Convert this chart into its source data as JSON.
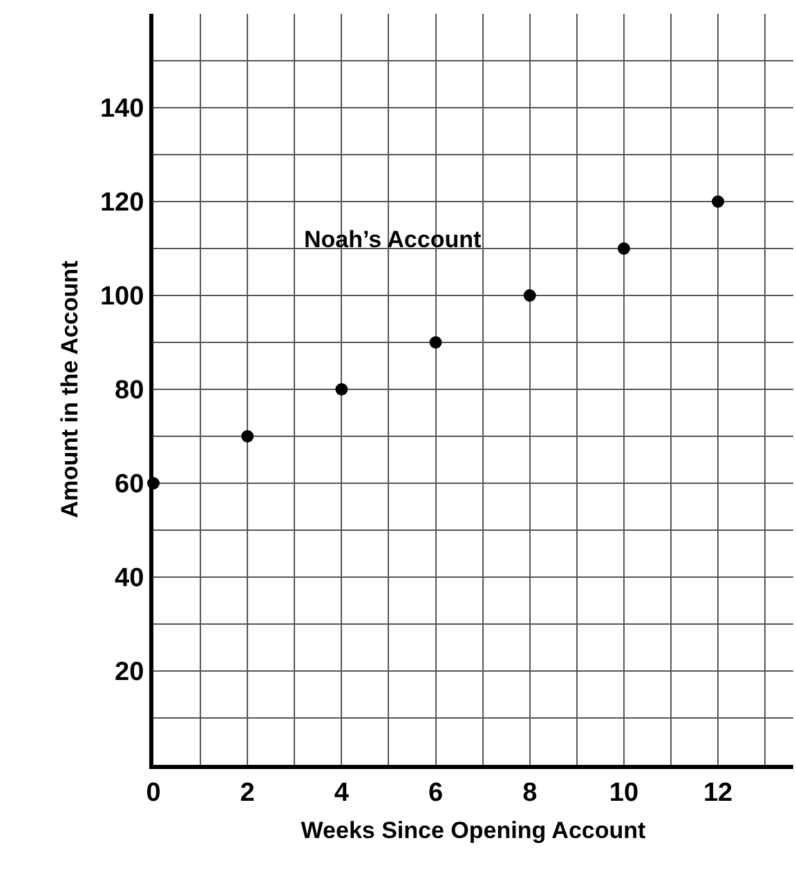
{
  "chart_data": {
    "type": "scatter",
    "xlabel": "Weeks Since Opening Account",
    "ylabel": "Amount in the Account",
    "x": [
      0,
      2,
      4,
      6,
      8,
      10,
      12
    ],
    "series": [
      {
        "name": "Noah’s Account",
        "color": "#000000",
        "values": [
          60,
          70,
          80,
          90,
          100,
          110,
          120
        ]
      }
    ],
    "xlim": [
      0,
      13.6
    ],
    "ylim": [
      0,
      160
    ],
    "xticks": [
      0,
      {
        "value": 1,
        "label": null
      },
      2,
      {
        "value": 3,
        "label": null
      },
      4,
      {
        "value": 5,
        "label": null
      },
      6,
      {
        "value": 7,
        "label": null
      },
      8,
      {
        "value": 9,
        "label": null
      },
      10,
      {
        "value": 11,
        "label": null
      },
      12,
      {
        "value": 13,
        "label": null
      }
    ],
    "yticks": [
      {
        "value": 10,
        "label": null
      },
      20,
      {
        "value": 30,
        "label": null
      },
      40,
      {
        "value": 50,
        "label": null
      },
      60,
      {
        "value": 70,
        "label": null
      },
      80,
      {
        "value": 90,
        "label": null
      },
      100,
      {
        "value": 110,
        "label": null
      },
      120,
      {
        "value": 130,
        "label": null
      },
      140,
      {
        "value": 150,
        "label": null
      }
    ],
    "grid": true,
    "marker": "circle",
    "legend": false
  }
}
